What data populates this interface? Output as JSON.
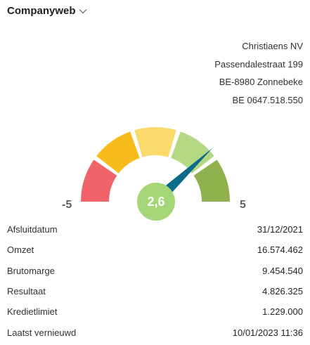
{
  "header": {
    "title": "Companyweb"
  },
  "company": {
    "name": "Christiaens NV",
    "street": "Passendalestraat 199",
    "city": "BE-8980 Zonnebeke",
    "vat": "BE 0647.518.550"
  },
  "gauge": {
    "min_label": "-5",
    "max_label": "5",
    "score_label": "2,6",
    "score": 2.6,
    "min": -5,
    "max": 5,
    "segment_colors": [
      "#f06469",
      "#f7bb1b",
      "#fbd96a",
      "#b5d982",
      "#8fb14e"
    ],
    "needle_color": "#0c6b8a",
    "score_color": "#a5d677"
  },
  "details": [
    {
      "label": "Afsluitdatum",
      "value": "31/12/2021"
    },
    {
      "label": "Omzet",
      "value": "16.574.462"
    },
    {
      "label": "Brutomarge",
      "value": "9.454.540"
    },
    {
      "label": "Resultaat",
      "value": "4.826.325"
    },
    {
      "label": "Kredietlimiet",
      "value": "1.229.000"
    },
    {
      "label": "Laatst vernieuwd",
      "value": "10/01/2023 11:36"
    }
  ]
}
